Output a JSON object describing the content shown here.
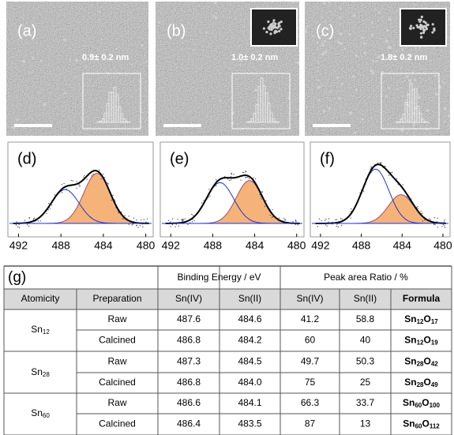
{
  "panels": [
    {
      "label": "(a)",
      "size": "0.9± 0.2 nm"
    },
    {
      "label": "(b)",
      "size": "1.0± 0.2 nm"
    },
    {
      "label": "(c)",
      "size": "1.8± 0.2 nm"
    }
  ],
  "xps": [
    {
      "label": "(d)",
      "xlim": [
        493,
        479.3
      ],
      "xticks": [
        492,
        488,
        484,
        480
      ]
    },
    {
      "label": "(e)",
      "xlim": [
        493,
        479.3
      ],
      "xticks": [
        492,
        488,
        484,
        480
      ]
    },
    {
      "label": "(f)",
      "xlim": [
        493,
        479.3
      ],
      "xticks": [
        492,
        488,
        484,
        480
      ]
    }
  ],
  "table": {
    "label": "(g)",
    "groups": [
      "Binding Energy / eV",
      "Peak area Ratio / %"
    ],
    "columns": [
      "Atomicity",
      "Preparation",
      "Sn(IV)",
      "Sn(II)",
      "Sn(IV)",
      "Sn(II)",
      "Formula"
    ],
    "samples": [
      {
        "atomicity": [
          "Sn",
          "12"
        ],
        "rows": [
          [
            "Raw",
            "487.6",
            "484.6",
            "41.2",
            "58.8",
            [
              "Sn",
              "12",
              "O",
              "17"
            ]
          ],
          [
            "Calcined",
            "486.8",
            "484.2",
            "60",
            "40",
            [
              "Sn",
              "12",
              "O",
              "19"
            ]
          ]
        ]
      },
      {
        "atomicity": [
          "Sn",
          "28"
        ],
        "rows": [
          [
            "Raw",
            "487.3",
            "484.5",
            "49.7",
            "50.3",
            [
              "Sn",
              "28",
              "O",
              "42"
            ]
          ],
          [
            "Calcined",
            "486.8",
            "484.0",
            "75",
            "25",
            [
              "Sn",
              "28",
              "O",
              "49"
            ]
          ]
        ]
      },
      {
        "atomicity": [
          "Sn",
          "60"
        ],
        "rows": [
          [
            "Raw",
            "486.6",
            "484.1",
            "66.3",
            "33.7",
            [
              "Sn",
              "60",
              "O",
              "100"
            ]
          ],
          [
            "Calcined",
            "486.4",
            "483.5",
            "87",
            "13",
            [
              "Sn",
              "60",
              "O",
              "112"
            ]
          ]
        ]
      }
    ]
  }
}
